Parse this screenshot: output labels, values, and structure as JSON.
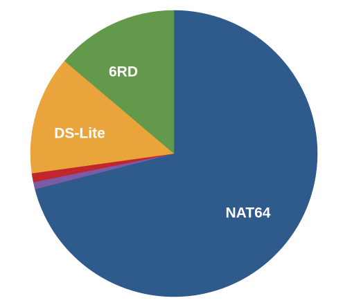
{
  "chart_data": {
    "type": "pie",
    "title": "",
    "start_angle_deg": 0,
    "direction": "clockwise",
    "slices": [
      {
        "label": "NAT64",
        "value": 71.0,
        "color": "#2E5A8C"
      },
      {
        "label": "",
        "value": 0.8,
        "color": "#7B5BA6"
      },
      {
        "label": "",
        "value": 1.0,
        "color": "#C0262C"
      },
      {
        "label": "6RD",
        "value": 13.4,
        "color": "#E9A43C"
      },
      {
        "label": "DS-Lite",
        "value": 13.8,
        "color": "#62994A"
      }
    ]
  }
}
